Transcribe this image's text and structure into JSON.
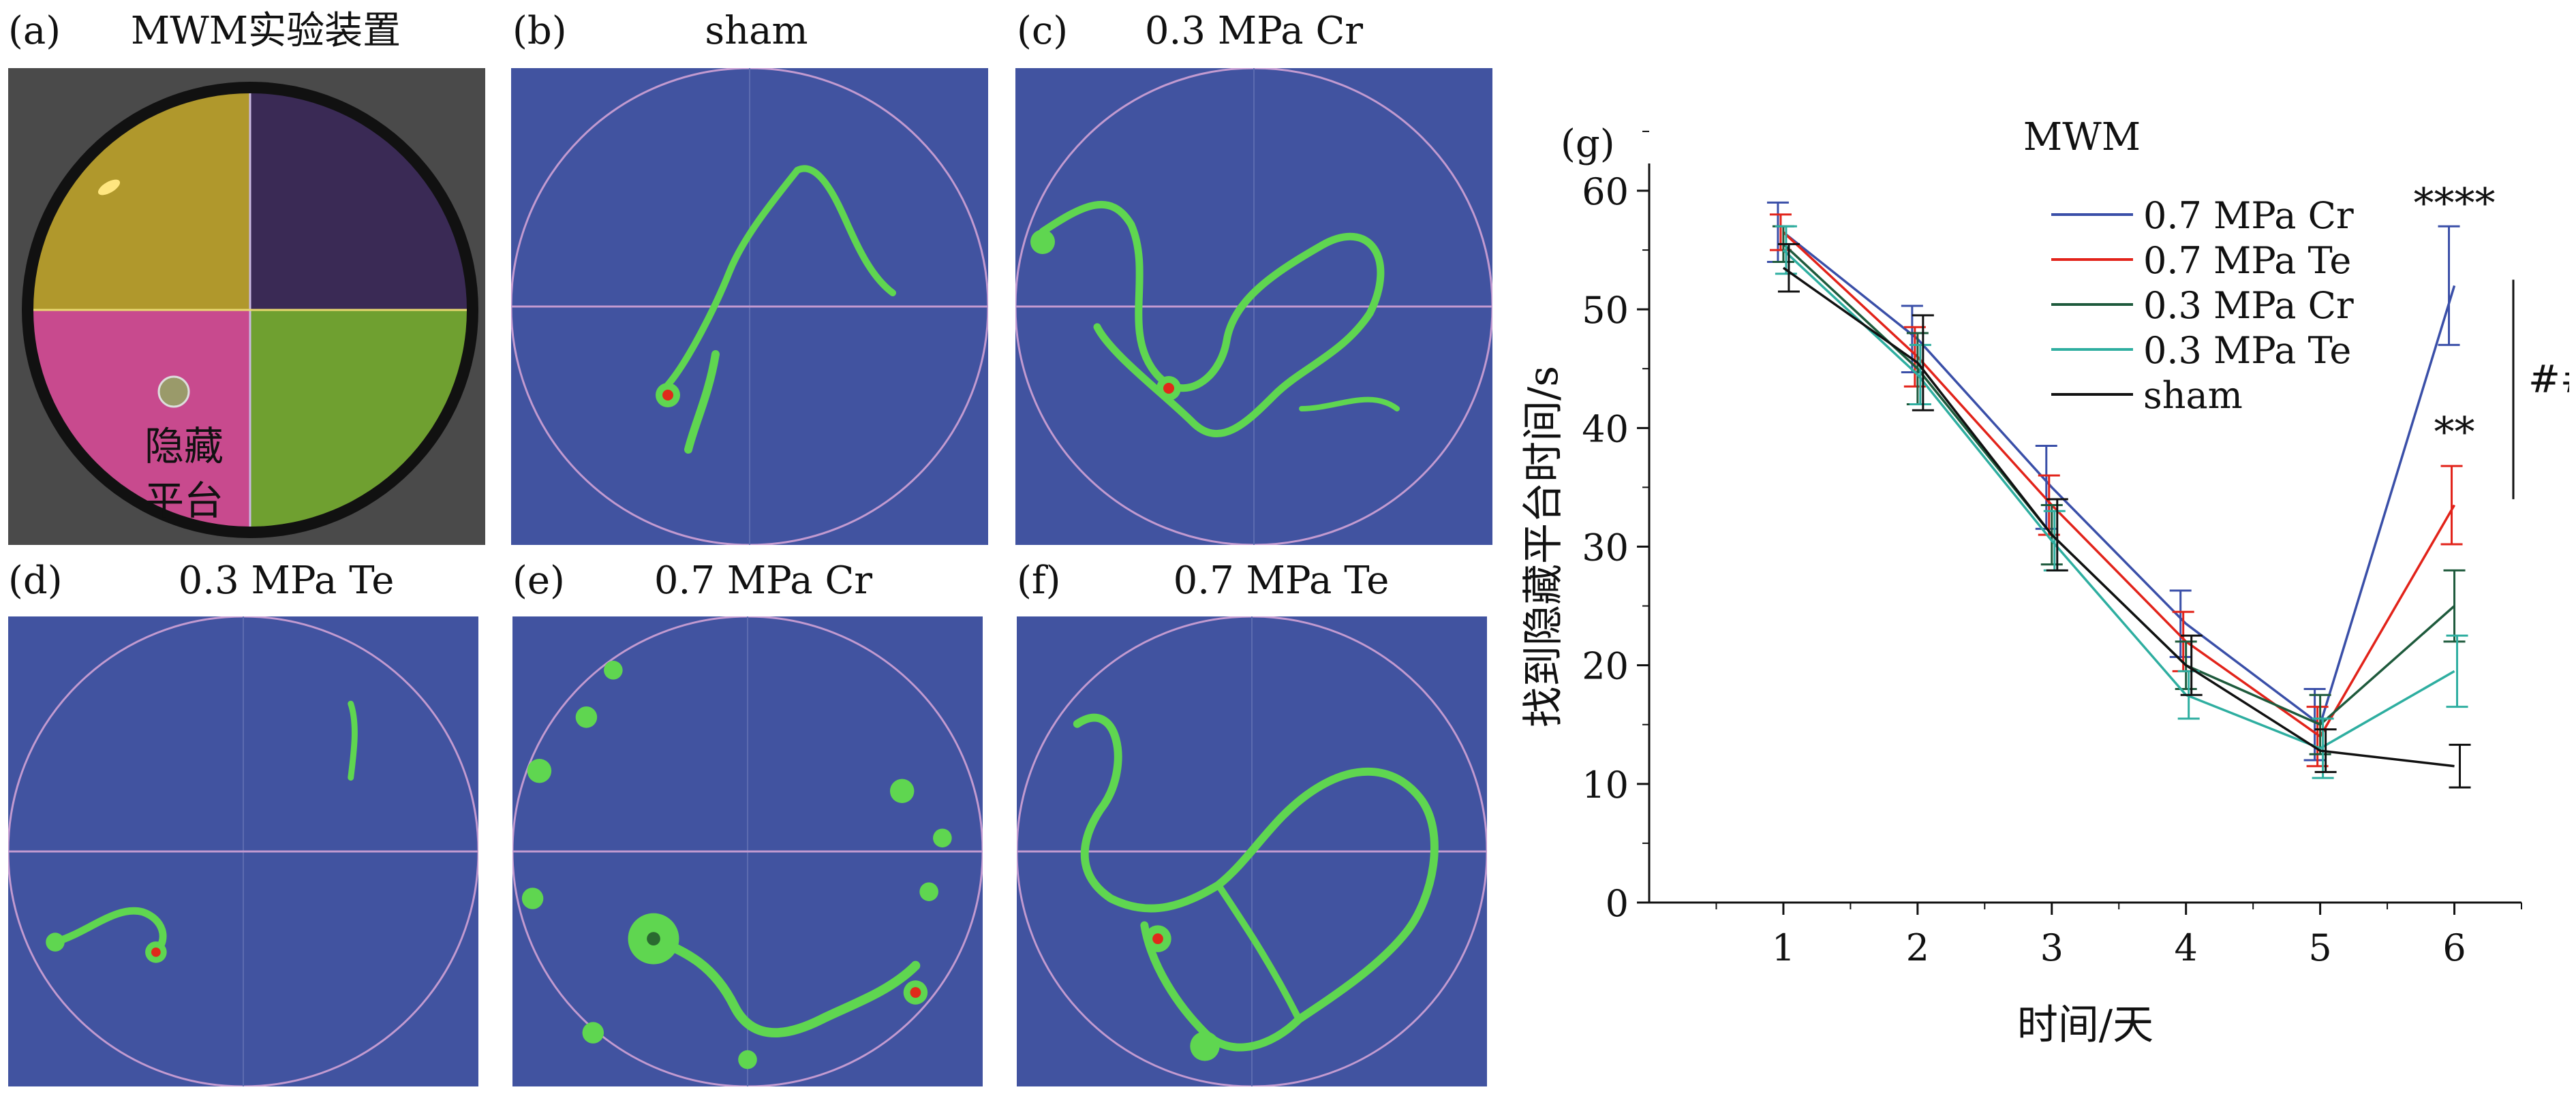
{
  "figure": {
    "panels": [
      {
        "label": "(a)",
        "title": "MWM实验装置"
      },
      {
        "label": "(b)",
        "title": "sham"
      },
      {
        "label": "(c)",
        "title": "0.3 MPa Cr"
      },
      {
        "label": "(d)",
        "title": "0.3 MPa Te"
      },
      {
        "label": "(e)",
        "title": "0.7 MPa Cr"
      },
      {
        "label": "(f)",
        "title": "0.7 MPa Te"
      }
    ],
    "photo_annotation_line1": "隐藏",
    "photo_annotation_line2": "平台",
    "photo_colors": {
      "top_left": "#b0982c",
      "top_right": "#3a2a55",
      "bottom_left": "#c84a8e",
      "bottom_right": "#6fa030",
      "rim": "#1a1a1a"
    },
    "heatmap_colors": {
      "background": "#4153a0",
      "track": "#5fd650",
      "hot": "#e02a1a",
      "pool_line": "#c29ad0"
    }
  },
  "chart_data": {
    "panel_label": "(g)",
    "type": "line",
    "title": "MWM",
    "xlabel": "时间/天",
    "ylabel": "找到隐藏平台时间/s",
    "x": [
      1,
      2,
      3,
      4,
      5,
      6
    ],
    "xlim": [
      0,
      6.5
    ],
    "ylim": [
      0,
      60
    ],
    "yticks": [
      0,
      10,
      20,
      30,
      40,
      50,
      60
    ],
    "series": [
      {
        "name": "0.7 MPa Cr",
        "color": "#3a4fa8",
        "values": [
          56.5,
          47.5,
          35.0,
          23.5,
          15.0,
          52.0
        ],
        "errors": [
          2.5,
          2.8,
          3.5,
          2.8,
          3.0,
          5.0
        ]
      },
      {
        "name": "0.7 MPa Te",
        "color": "#e2231a",
        "values": [
          56.5,
          46.0,
          33.5,
          22.0,
          14.0,
          33.5
        ],
        "errors": [
          1.5,
          2.5,
          2.5,
          2.5,
          2.5,
          3.3
        ]
      },
      {
        "name": "0.3 MPa Cr",
        "color": "#1e5a3c",
        "values": [
          55.5,
          45.0,
          31.0,
          20.0,
          15.0,
          25.0
        ],
        "errors": [
          1.5,
          3.0,
          2.5,
          2.0,
          2.5,
          3.0
        ]
      },
      {
        "name": "0.3 MPa Te",
        "color": "#2eaea0",
        "values": [
          55.0,
          44.5,
          30.5,
          17.5,
          13.0,
          19.5
        ],
        "errors": [
          2.0,
          2.5,
          2.5,
          2.0,
          2.5,
          3.0
        ]
      },
      {
        "name": "sham",
        "color": "#111111",
        "values": [
          53.5,
          45.5,
          31.0,
          20.0,
          12.8,
          11.5
        ],
        "errors": [
          2.0,
          4.0,
          3.0,
          2.5,
          1.8,
          1.8
        ]
      }
    ],
    "annotations": {
      "stars_top": "****",
      "stars_mid": "**",
      "hash": "##"
    }
  }
}
